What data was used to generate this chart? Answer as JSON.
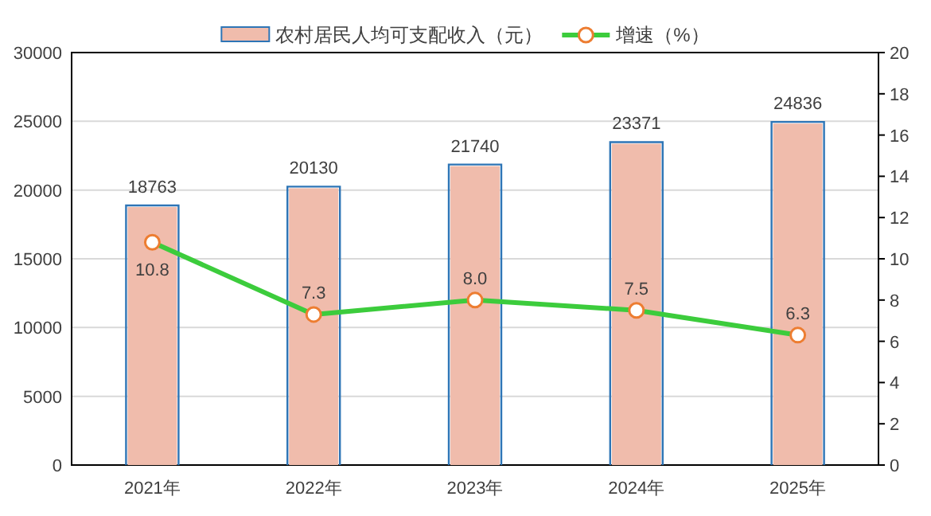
{
  "chart_data": {
    "type": "bar",
    "categories": [
      "2021年",
      "2022年",
      "2023年",
      "2024年",
      "2025年"
    ],
    "series": [
      {
        "name": "农村居民人均可支配收入（元）",
        "color": "#f0bcac",
        "values": [
          18763,
          20130,
          21740,
          23371,
          24836
        ]
      },
      {
        "name": "增速（%）",
        "type": "line",
        "axis": "y2",
        "color": "#3ccc3c",
        "values": [
          10.8,
          7.3,
          8.0,
          7.5,
          6.3
        ],
        "value_labels": [
          "10.8",
          "7.3",
          "8.0",
          "7.5",
          "6.3"
        ]
      }
    ],
    "ylim": [
      0,
      30000
    ],
    "yticks": [
      0,
      5000,
      10000,
      15000,
      20000,
      25000,
      30000
    ],
    "y2lim": [
      0,
      20
    ],
    "y2ticks": [
      0,
      2,
      4,
      6,
      8,
      10,
      12,
      14,
      16,
      18,
      20
    ],
    "grid": "y",
    "legend": "top",
    "marker": "circle",
    "data_labels": true
  }
}
